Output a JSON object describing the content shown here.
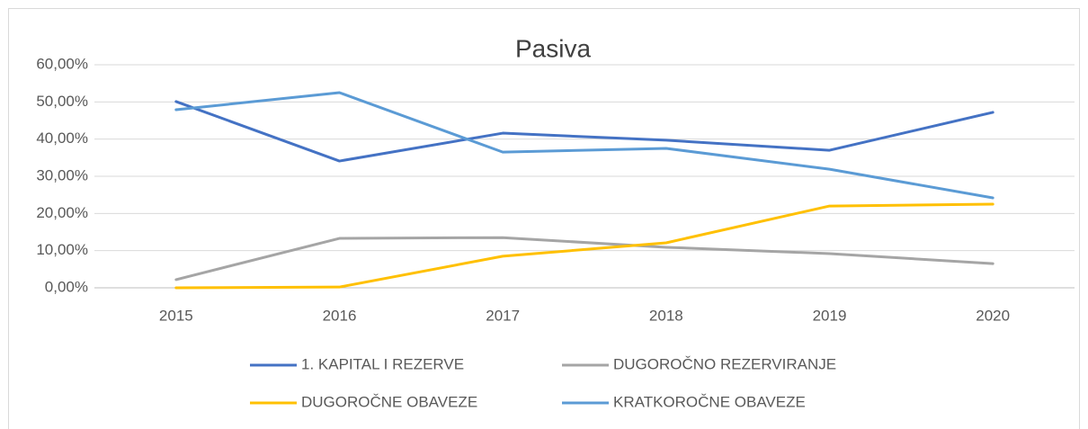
{
  "chart_data": {
    "type": "line",
    "title": "Pasiva",
    "categories": [
      "2015",
      "2016",
      "2017",
      "2018",
      "2019",
      "2020"
    ],
    "series": [
      {
        "name": "1. KAPITAL I REZERVE",
        "color": "#4472c4",
        "values": [
          50.1,
          34.1,
          41.6,
          39.7,
          37.0,
          47.2
        ]
      },
      {
        "name": "DUGOROČNO REZERVIRANJE",
        "color": "#a5a5a5",
        "values": [
          2.2,
          13.3,
          13.5,
          10.9,
          9.2,
          6.5
        ]
      },
      {
        "name": "DUGOROČNE OBAVEZE",
        "color": "#ffc000",
        "values": [
          0,
          0.2,
          8.5,
          12.1,
          22.0,
          22.5
        ]
      },
      {
        "name": "KRATKOROČNE OBAVEZE",
        "color": "#5b9bd5",
        "values": [
          47.9,
          52.5,
          36.5,
          37.5,
          31.9,
          24.2
        ]
      }
    ],
    "ylim": [
      0,
      60
    ],
    "yticks": [
      {
        "value": 0,
        "label": "0,00%"
      },
      {
        "value": 10,
        "label": "10,00%"
      },
      {
        "value": 20,
        "label": "20,00%"
      },
      {
        "value": 30,
        "label": "30,00%"
      },
      {
        "value": 40,
        "label": "40,00%"
      },
      {
        "value": 50,
        "label": "50,00%"
      },
      {
        "value": 60,
        "label": "60,00%"
      }
    ],
    "grid": true,
    "legend": "bottom"
  }
}
